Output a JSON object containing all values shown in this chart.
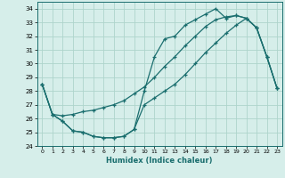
{
  "xlabel": "Humidex (Indice chaleur)",
  "xlim": [
    -0.5,
    23.5
  ],
  "ylim": [
    24,
    34.5
  ],
  "yticks": [
    24,
    25,
    26,
    27,
    28,
    29,
    30,
    31,
    32,
    33,
    34
  ],
  "xticks": [
    0,
    1,
    2,
    3,
    4,
    5,
    6,
    7,
    8,
    9,
    10,
    11,
    12,
    13,
    14,
    15,
    16,
    17,
    18,
    19,
    20,
    21,
    22,
    23
  ],
  "bg_color": "#d6eeea",
  "grid_color": "#aed4cc",
  "line_color": "#1a6e6e",
  "line1_x": [
    0,
    1,
    2,
    3,
    4,
    5,
    6,
    7,
    8,
    9,
    10,
    11,
    12,
    13,
    14,
    15,
    16,
    17,
    18,
    19,
    20,
    21,
    22,
    23
  ],
  "line1_y": [
    28.5,
    26.3,
    26.2,
    26.3,
    26.5,
    26.6,
    26.8,
    27.0,
    27.3,
    27.8,
    28.3,
    29.0,
    29.8,
    30.5,
    31.3,
    32.0,
    32.7,
    33.2,
    33.4,
    33.5,
    33.3,
    32.6,
    30.5,
    28.2
  ],
  "line2_x": [
    0,
    1,
    2,
    3,
    4,
    5,
    6,
    7,
    8,
    9,
    10,
    11,
    12,
    13,
    14,
    15,
    16,
    17,
    18,
    19,
    20,
    21,
    22,
    23
  ],
  "line2_y": [
    28.5,
    26.3,
    25.8,
    25.1,
    25.0,
    24.7,
    24.6,
    24.6,
    24.7,
    25.2,
    28.0,
    30.5,
    31.8,
    32.0,
    32.8,
    33.2,
    33.6,
    34.0,
    33.3,
    33.5,
    33.3,
    32.6,
    30.5,
    28.2
  ],
  "line3_x": [
    0,
    1,
    2,
    3,
    4,
    5,
    6,
    7,
    8,
    9,
    10,
    11,
    12,
    13,
    14,
    15,
    16,
    17,
    18,
    19,
    20,
    21,
    22,
    23
  ],
  "line3_y": [
    28.5,
    26.3,
    25.8,
    25.1,
    25.0,
    24.7,
    24.6,
    24.6,
    24.7,
    25.2,
    27.0,
    27.5,
    28.0,
    28.5,
    29.2,
    30.0,
    30.8,
    31.5,
    32.2,
    32.8,
    33.3,
    32.6,
    30.5,
    28.2
  ]
}
